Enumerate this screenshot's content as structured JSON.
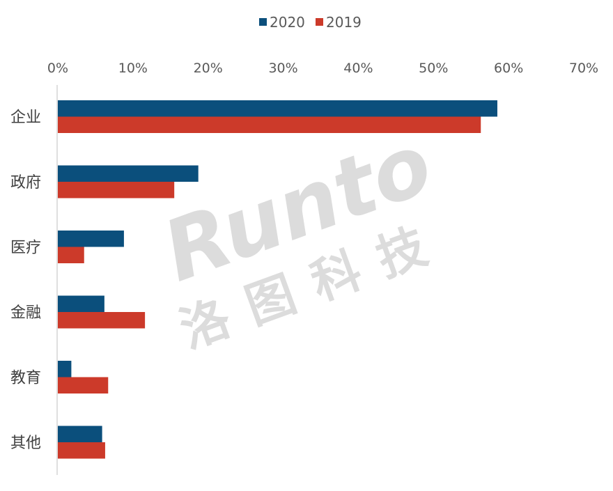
{
  "chart_data": {
    "type": "bar",
    "orientation": "horizontal",
    "categories": [
      "企业",
      "政府",
      "医疗",
      "金融",
      "教育",
      "其他"
    ],
    "series": [
      {
        "name": "2020",
        "color": "#0b4f7c",
        "values": [
          58.5,
          18.7,
          8.8,
          6.2,
          1.8,
          5.9
        ]
      },
      {
        "name": "2019",
        "color": "#cc3a2a",
        "values": [
          56.3,
          15.5,
          3.5,
          11.6,
          6.7,
          6.3
        ]
      }
    ],
    "xlim": [
      0,
      70
    ],
    "xticks": [
      "0%",
      "10%",
      "20%",
      "30%",
      "40%",
      "50%",
      "60%",
      "70%"
    ],
    "axis_position": "top",
    "legend_position": "top-center",
    "grid": false
  },
  "watermark": {
    "logo": "Runto",
    "name": "洛图科技"
  }
}
